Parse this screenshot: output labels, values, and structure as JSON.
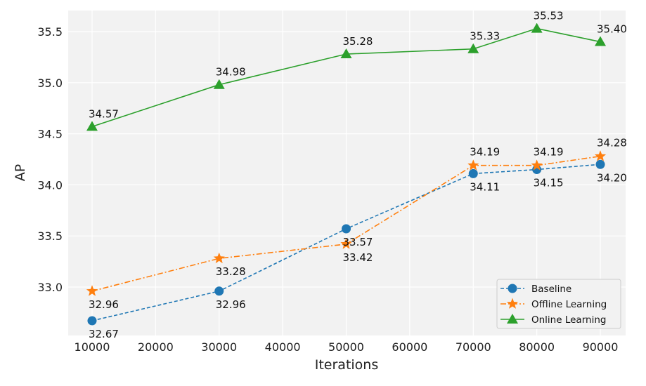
{
  "chart_data": {
    "type": "line",
    "xlabel": "Iterations",
    "ylabel": "AP",
    "x": [
      10000,
      30000,
      50000,
      70000,
      80000,
      90000
    ],
    "xticks": [
      10000,
      20000,
      30000,
      40000,
      50000,
      60000,
      70000,
      80000,
      90000
    ],
    "yticks": [
      33.0,
      33.5,
      34.0,
      34.5,
      35.0,
      35.5
    ],
    "xlim": [
      6240,
      93980
    ],
    "ylim": [
      32.526,
      35.706
    ],
    "grid": true,
    "legend_position": "bottom-right",
    "series": [
      {
        "name": "Baseline",
        "values": [
          32.67,
          32.96,
          33.57,
          34.11,
          34.15,
          34.2
        ],
        "color": "#1f77b4",
        "marker": "circle",
        "dash": "dashed"
      },
      {
        "name": "Offline Learning",
        "values": [
          32.96,
          33.28,
          33.42,
          34.19,
          34.19,
          34.28
        ],
        "color": "#ff7f0e",
        "marker": "star",
        "dash": "dashdot"
      },
      {
        "name": "Online Learning",
        "values": [
          34.57,
          34.98,
          35.28,
          35.33,
          35.53,
          35.4
        ],
        "color": "#2ca02c",
        "marker": "triangle",
        "dash": "solid"
      }
    ]
  }
}
